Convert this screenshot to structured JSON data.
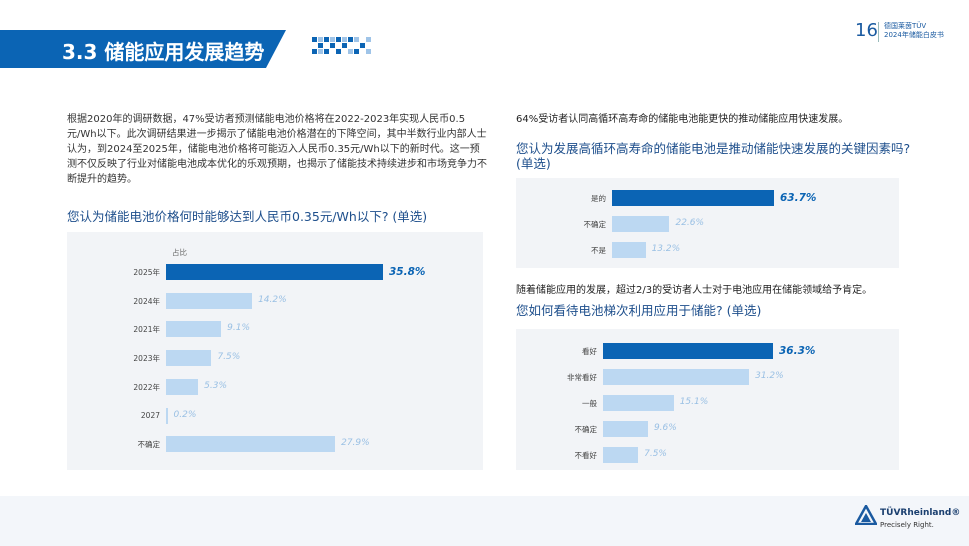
{
  "header": {
    "section_title": "3.3 储能应用发展趋势",
    "page_number": "16",
    "org": "德国莱茵TÜV",
    "report": "2024年储能白皮书"
  },
  "left": {
    "paragraph": "根据2020年的调研数据，47%受访者预测储能电池价格将在2022-2023年实现人民币0.5元/Wh以下。此次调研结果进一步揭示了储能电池价格潜在的下降空间，其中半数行业内部人士认为，到2024至2025年，储能电池价格将可能迈入人民币0.35元/Wh以下的新时代。这一预测不仅反映了行业对储能电池成本优化的乐观预期，也揭示了储能技术持续进步和市场竞争力不断提升的趋势。",
    "question": "您认为储能电池价格何时能够达到人民币0.35元/Wh以下? (单选)"
  },
  "right": {
    "statement1": "64%受访者认同高循环高寿命的储能电池能更快的推动储能应用快速发展。",
    "question1": "您认为发展高循环高寿命的储能电池是推动储能快速发展的关键因素吗? (单选)",
    "statement2": "随着储能应用的发展，超过2/3的受访者人士对于电池应用在储能领域给予肯定。",
    "question2": "您如何看待电池梯次利用应用于储能? (单选)"
  },
  "colors": {
    "highlight": "#0b64b4",
    "normal": "#bcd8f2",
    "title_bg": "#0b64b4"
  },
  "footer": {
    "logo_text": "TÜVRheinland®",
    "tagline": "Precisely Right."
  },
  "chart_data": [
    {
      "type": "bar",
      "orientation": "horizontal",
      "xlabel": "占比",
      "categories": [
        "2025年",
        "2024年",
        "2021年",
        "2023年",
        "2022年",
        "2027",
        "不确定"
      ],
      "values": [
        35.8,
        14.2,
        9.1,
        7.5,
        5.3,
        0.2,
        27.9
      ],
      "value_labels": [
        "35.8%",
        "14.2%",
        "9.1%",
        "7.5%",
        "5.3%",
        "0.2%",
        "27.9%"
      ],
      "highlight_index": 0
    },
    {
      "type": "bar",
      "orientation": "horizontal",
      "categories": [
        "是的",
        "不确定",
        "不是"
      ],
      "values": [
        63.7,
        22.6,
        13.2
      ],
      "value_labels": [
        "63.7%",
        "22.6%",
        "13.2%"
      ],
      "highlight_index": 0
    },
    {
      "type": "bar",
      "orientation": "horizontal",
      "categories": [
        "看好",
        "非常看好",
        "一般",
        "不确定",
        "不看好"
      ],
      "values": [
        36.3,
        31.2,
        15.1,
        9.6,
        7.5
      ],
      "value_labels": [
        "36.3%",
        "31.2%",
        "15.1%",
        "9.6%",
        "7.5%"
      ],
      "highlight_index": 0
    }
  ]
}
